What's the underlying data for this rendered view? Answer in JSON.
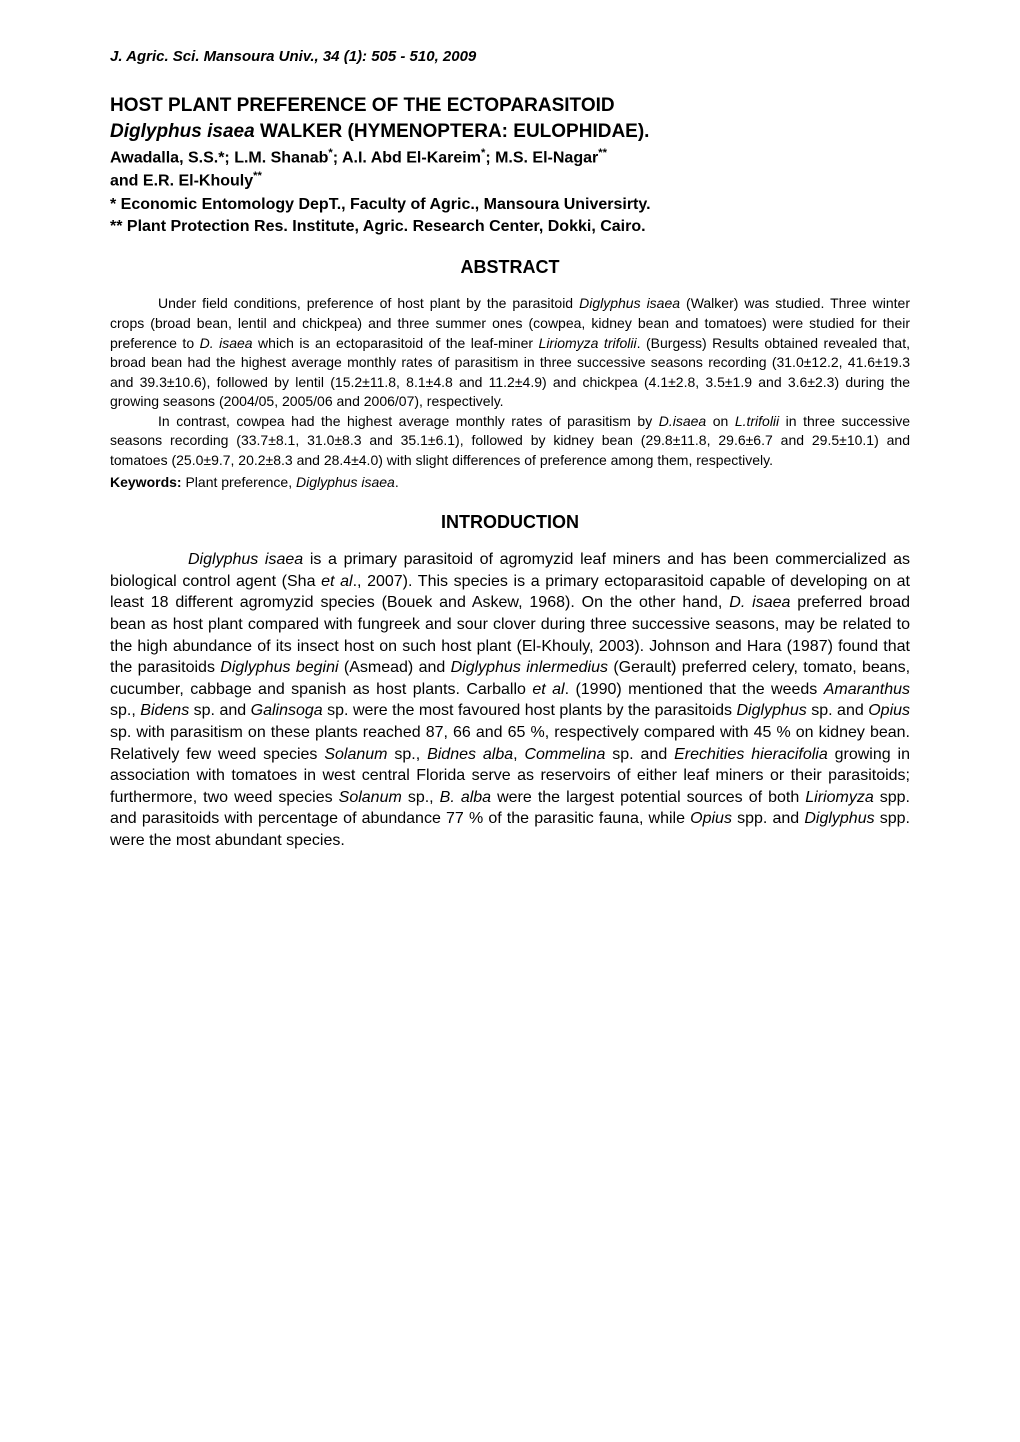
{
  "journal_reference": "J. Agric. Sci. Mansoura Univ., 34 (1): 505 - 510, 2009",
  "title_line1": "HOST PLANT PREFERENCE OF THE ECTOPARASITOID",
  "title_species": "Diglyphus isaea",
  "title_line2_rest": " WALKER (HYMENOPTERA: EULOPHIDAE).",
  "authors_line1": "Awadalla, S.S.*; L.M. Shanab",
  "authors_sup1": "*",
  "authors_mid1": "; A.I. Abd El-Kareim",
  "authors_sup2": "*",
  "authors_mid2": "; M.S. El-Nagar",
  "authors_sup3": "**",
  "authors_line2": "and E.R. El-Khouly",
  "authors_sup4": "**",
  "affiliation1": "*  Economic Entomology DepT., Faculty of Agric., Mansoura Universirty.",
  "affiliation2": "** Plant Protection Res. Institute, Agric. Research Center, Dokki, Cairo.",
  "abstract_header": "ABSTRACT",
  "abstract_p1_a": "Under field conditions, preference of host plant by the parasitoid ",
  "abstract_p1_i1": "Diglyphus isaea",
  "abstract_p1_b": " (Walker) was studied. Three winter crops (broad bean, lentil and chickpea) and three summer ones (cowpea, kidney bean and tomatoes) were studied for their preference to ",
  "abstract_p1_i2": "D. isaea",
  "abstract_p1_c": " which is an ectoparasitoid of the leaf-miner ",
  "abstract_p1_i3": "Liriomyza trifolii",
  "abstract_p1_d": ". (Burgess) Results obtained revealed that, broad bean had the highest average monthly rates of parasitism in three successive seasons recording (31.0±12.2, 41.6±19.3 and 39.3±10.6), followed by lentil (15.2±11.8, 8.1±4.8 and 11.2±4.9) and chickpea (4.1±2.8, 3.5±1.9 and 3.6±2.3) during the growing seasons (2004/05, 2005/06 and 2006/07), respectively.",
  "abstract_p2_a": "In contrast, cowpea had the highest average monthly rates of parasitism by ",
  "abstract_p2_i1": "D.isaea",
  "abstract_p2_b": " on ",
  "abstract_p2_i2": "L.trifolii",
  "abstract_p2_c": " in three successive seasons recording (33.7±8.1, 31.0±8.3 and 35.1±6.1), followed by kidney bean (29.8±11.8, 29.6±6.7 and 29.5±10.1) and tomatoes (25.0±9.7, 20.2±8.3 and 28.4±4.0) with slight differences of preference among them, respectively.",
  "keywords_label": "Keywords:",
  "keywords_text_a": " Plant preference, ",
  "keywords_text_i": "Diglyphus isaea",
  "keywords_text_b": ".",
  "intro_header": "INTRODUCTION",
  "intro_i1": "Diglyphus isaea",
  "intro_a": " is a primary parasitoid of agromyzid leaf miners and has been commercialized as biological control agent (Sha ",
  "intro_i2": "et al",
  "intro_b": "., 2007). This species is a primary ectoparasitoid capable of developing on at least 18 different agromyzid species (Bouek and Askew, 1968). On the other hand, ",
  "intro_i3": "D. isaea",
  "intro_c": " preferred broad bean as host plant compared with fungreek and sour clover during three successive seasons, may be related to the high abundance of its insect host on such host plant (El-Khouly, 2003). Johnson and Hara (1987) found that the parasitoids ",
  "intro_i4": "Diglyphus begini",
  "intro_d": " (Asmead) and ",
  "intro_i5": "Diglyphus inlermedius",
  "intro_e": " (Gerault) preferred celery, tomato, beans, cucumber, cabbage and spanish as host plants. Carballo ",
  "intro_i6": "et al",
  "intro_f": ". (1990) mentioned that the weeds ",
  "intro_i7": "Amaranthus",
  "intro_g": " sp., ",
  "intro_i8": "Bidens",
  "intro_h": " sp. and ",
  "intro_i9": "Galinsoga",
  "intro_j": " sp. were the most favoured host plants by the parasitoids ",
  "intro_i10": "Diglyphus",
  "intro_k": " sp. and ",
  "intro_i11": "Opius",
  "intro_l": " sp. with parasitism on these plants reached 87, 66 and 65 %, respectively compared with 45 % on kidney bean. Relatively few weed species ",
  "intro_i12": "Solanum",
  "intro_m": " sp., ",
  "intro_i13": "Bidnes alba",
  "intro_n": ", ",
  "intro_i14": "Commelina",
  "intro_o": " sp. and ",
  "intro_i15": "Erechities hieracifolia",
  "intro_p": " growing in association with tomatoes in west central Florida serve as reservoirs of either leaf miners or their parasitoids; furthermore, two weed species ",
  "intro_i16": "Solanum",
  "intro_q": " sp., ",
  "intro_i17": "B. alba",
  "intro_r": " were the largest potential sources of both ",
  "intro_i18": "Liriomyza",
  "intro_s": " spp. and parasitoids with percentage of abundance 77 % of the parasitic fauna, while ",
  "intro_i19": "Opius",
  "intro_t": " spp. and ",
  "intro_i20": "Diglyphus",
  "intro_u": " spp. were the most abundant species."
}
